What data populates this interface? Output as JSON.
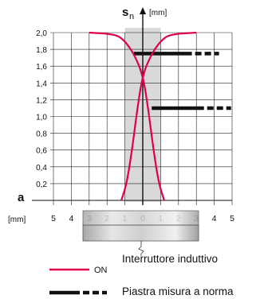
{
  "chart_data": {
    "type": "line",
    "y_axis": {
      "symbol": "s",
      "subscript": "n",
      "unit": "[mm]",
      "range": [
        0,
        2.0
      ],
      "ticks": [
        "2,0",
        "1,8",
        "1,6",
        "1,4",
        "1,2",
        "1,0",
        "0,8",
        "0,6",
        "0,4",
        "0,2"
      ]
    },
    "x_axis": {
      "symbol": "a",
      "unit": "[mm]",
      "range": [
        -5,
        5
      ],
      "ticks": [
        "5",
        "4",
        "3",
        "2",
        "1",
        "0",
        "1",
        "2",
        "3",
        "4",
        "5"
      ]
    },
    "grid": true,
    "series": [
      {
        "name": "ON",
        "style": "solid",
        "color": "#e0004d",
        "curves": [
          {
            "points": [
              [
                -3.0,
                2.0
              ],
              [
                -1.5,
                1.98
              ],
              [
                -1.0,
                1.9
              ],
              [
                -0.5,
                1.75
              ],
              [
                0.0,
                1.5
              ],
              [
                0.3,
                1.1
              ],
              [
                0.6,
                0.6
              ],
              [
                0.9,
                0.2
              ],
              [
                1.2,
                0.0
              ]
            ]
          },
          {
            "points": [
              [
                3.0,
                2.0
              ],
              [
                1.5,
                1.98
              ],
              [
                1.0,
                1.9
              ],
              [
                0.5,
                1.75
              ],
              [
                0.0,
                1.5
              ],
              [
                -0.3,
                1.1
              ],
              [
                -0.6,
                0.6
              ],
              [
                -0.9,
                0.2
              ],
              [
                -1.2,
                0.0
              ]
            ]
          }
        ]
      },
      {
        "name": "",
        "style": "dashed-thick",
        "color": "#111111",
        "segments": [
          {
            "y": 1.75,
            "x_start": -0.5,
            "x_end": 4.5
          },
          {
            "y": 1.1,
            "x_start": 0.5,
            "x_end": 5.0
          }
        ]
      }
    ],
    "band": {
      "x_start": -1.0,
      "x_end": 1.0,
      "color": "#d9d9d9"
    }
  },
  "legend": {
    "on_label": "ON",
    "switch_label": "Interruttore induttivo",
    "plate_label": "Piastra misura a norma"
  },
  "colors": {
    "grid": "#222222",
    "band": "#d9d9d9",
    "on": "#e0004d",
    "plate": "#111111",
    "sensor_body": "#c8c8c8"
  }
}
